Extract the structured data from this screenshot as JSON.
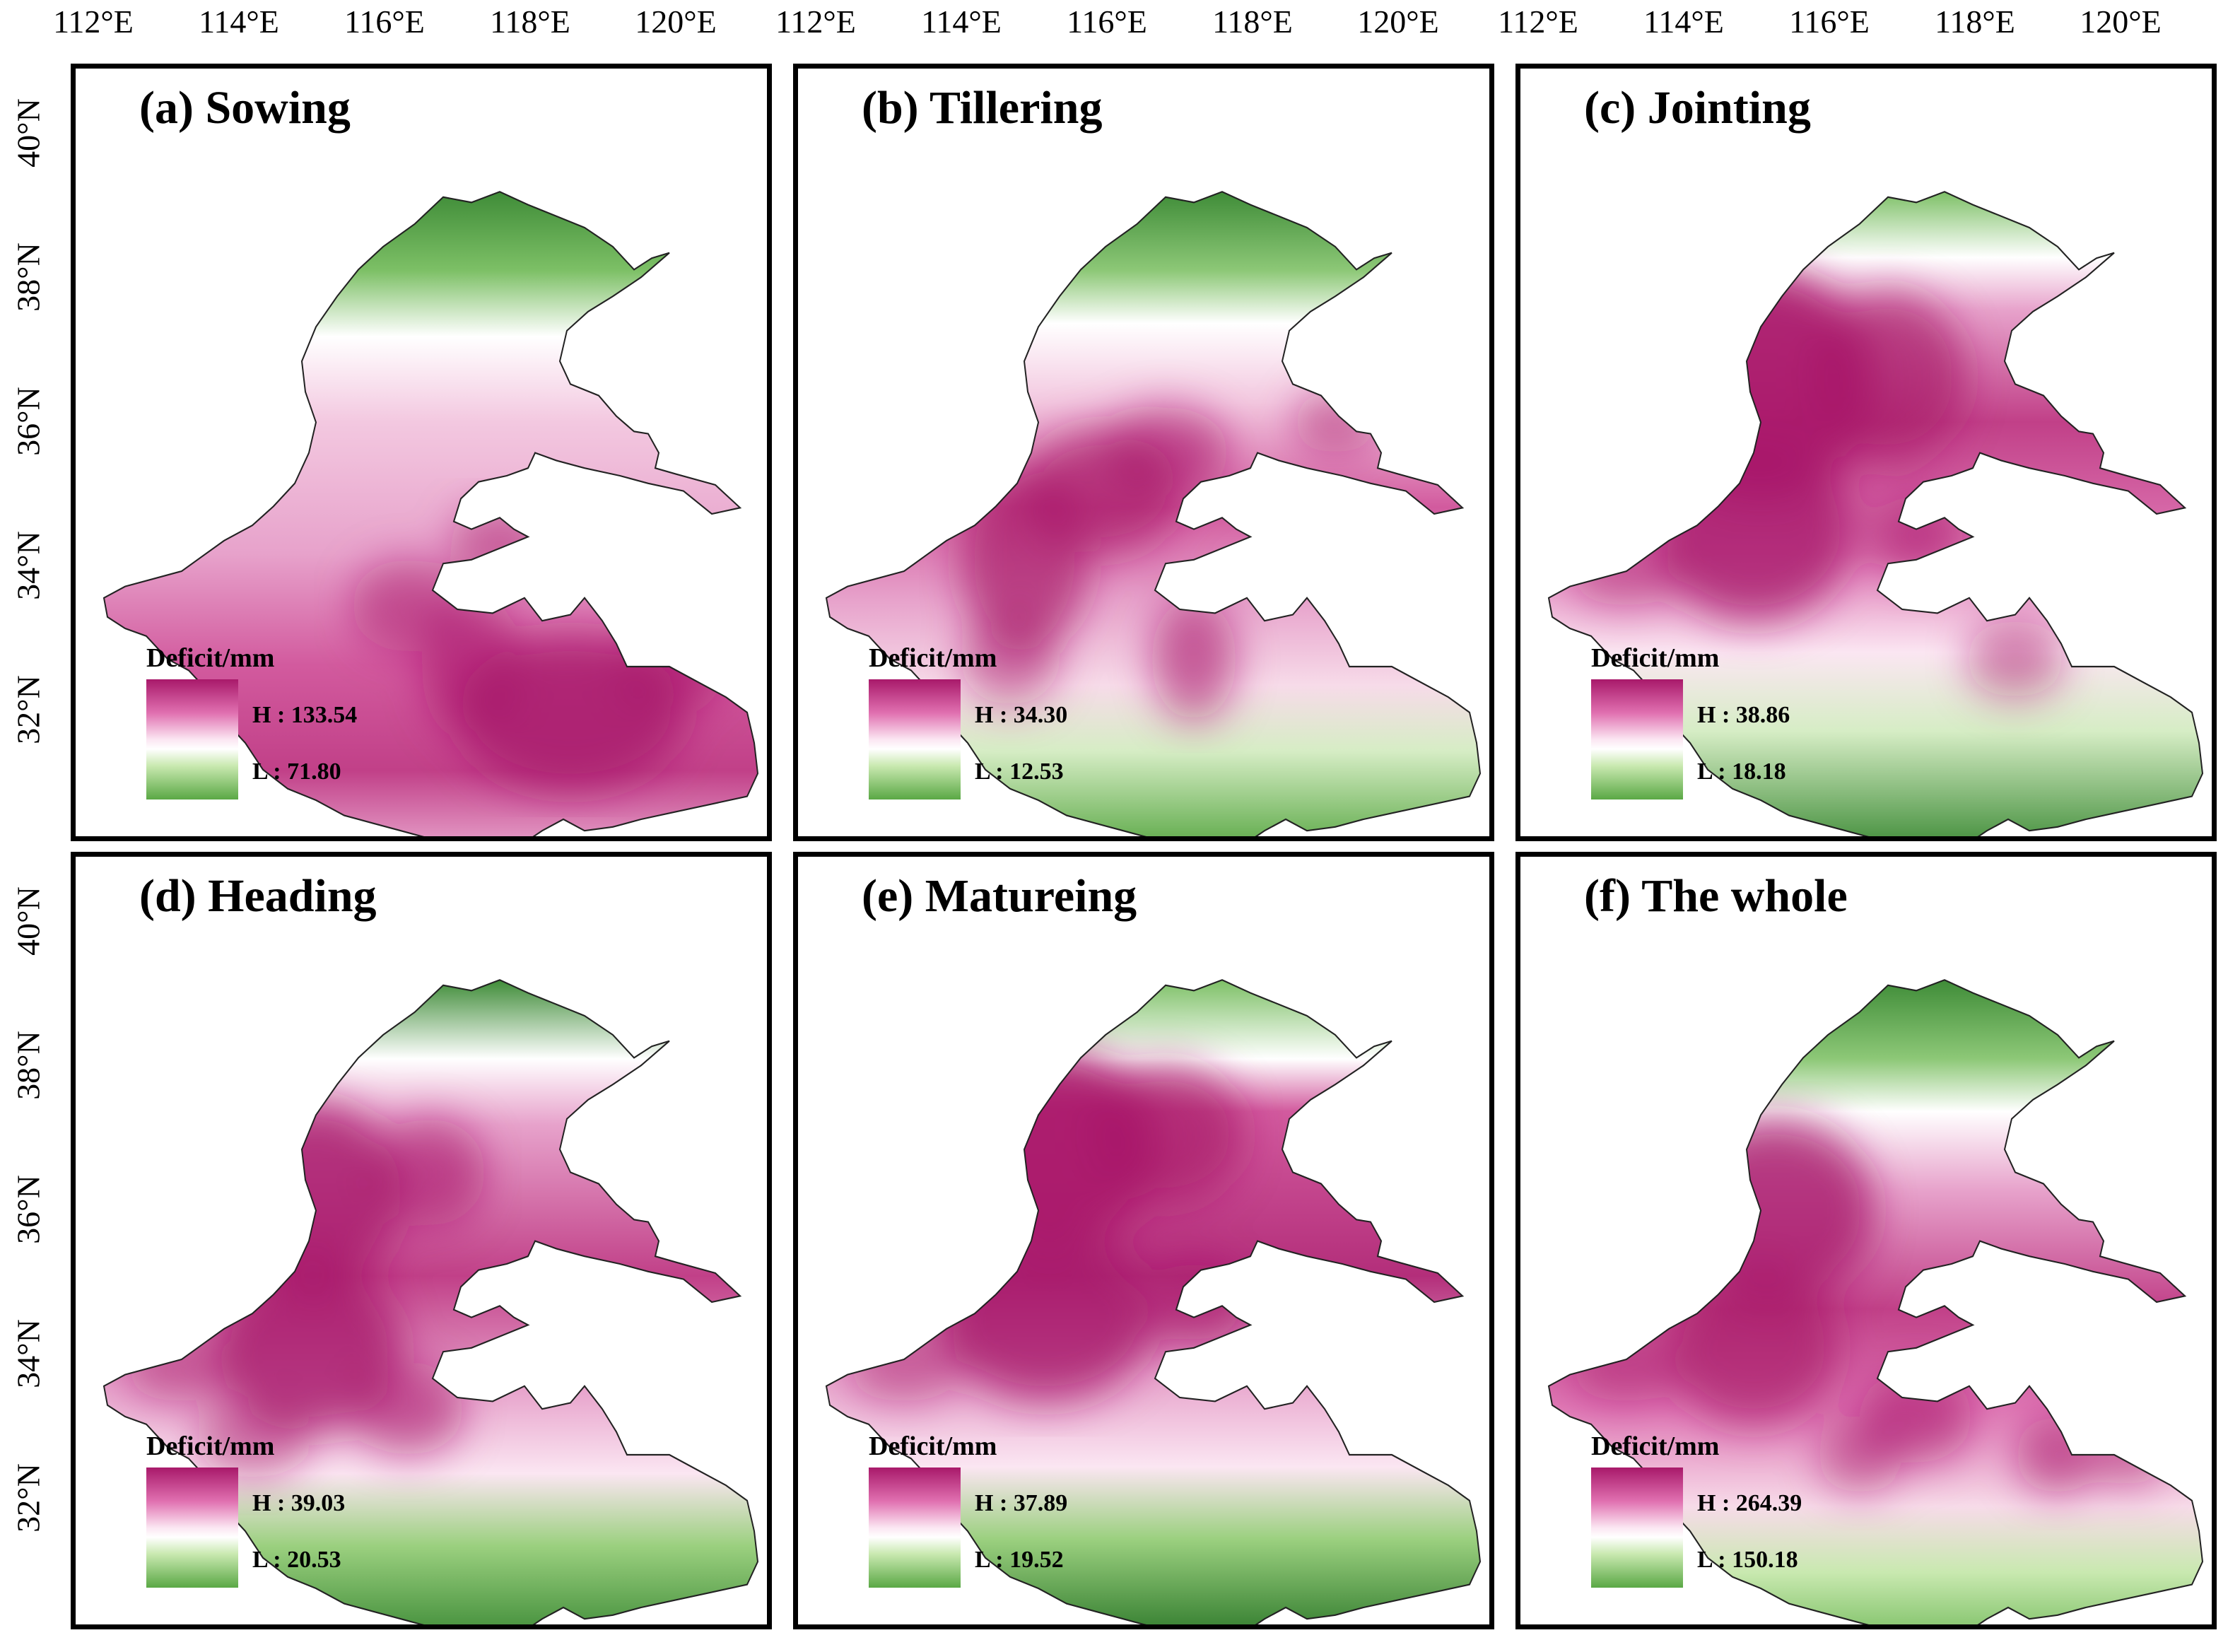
{
  "axes": {
    "lon_labels": [
      "112°E",
      "114°E",
      "116°E",
      "118°E",
      "120°E"
    ],
    "lat_labels": [
      "40°N",
      "38°N",
      "36°N",
      "34°N",
      "32°N"
    ]
  },
  "legend_title": "Deficit/mm",
  "colors": {
    "high": "#a8196a",
    "mid": "#ffffff",
    "low": "#5aa845"
  },
  "panels": [
    {
      "title": "(a) Sowing",
      "high": "H : 133.54",
      "low": "L : 71.80",
      "pattern": "sowing"
    },
    {
      "title": "(b) Tillering",
      "high": "H : 34.30",
      "low": "L : 12.53",
      "pattern": "tillering"
    },
    {
      "title": "(c) Jointing",
      "high": "H : 38.86",
      "low": "L : 18.18",
      "pattern": "jointing"
    },
    {
      "title": "(d) Heading",
      "high": "H : 39.03",
      "low": "L : 20.53",
      "pattern": "heading"
    },
    {
      "title": "(e) Matureing",
      "high": "H : 37.89",
      "low": "L : 19.52",
      "pattern": "matureing"
    },
    {
      "title": "(f) The whole",
      "high": "H : 264.39",
      "low": "L : 150.18",
      "pattern": "whole"
    }
  ]
}
